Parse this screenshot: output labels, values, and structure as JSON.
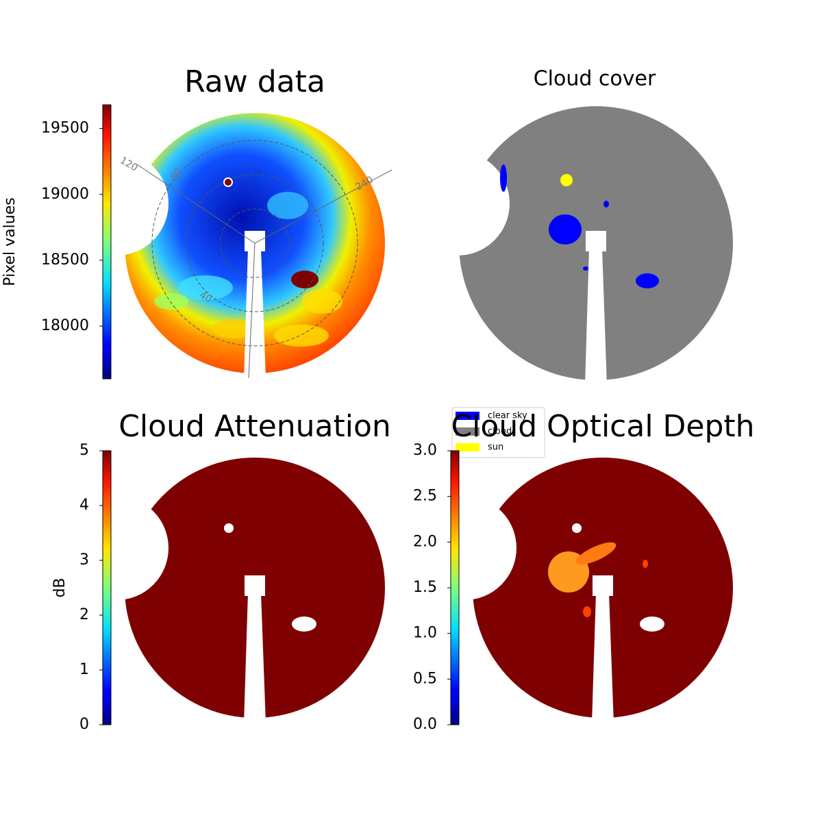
{
  "chart_data": [
    {
      "type": "image",
      "title": "Raw data",
      "colormap": "jet",
      "colorbar": {
        "label": "Pixel values",
        "ylim": [
          17600,
          19680
        ],
        "yticks": [
          18000,
          18500,
          19000,
          19500
        ]
      },
      "annotations": [
        "120",
        "80",
        "240",
        "40"
      ]
    },
    {
      "type": "image",
      "title": "Cloud cover",
      "series": [
        {
          "name": "clear sky",
          "color": "#0000ff"
        },
        {
          "name": "cloud",
          "color": "#808080"
        },
        {
          "name": "sun",
          "color": "#ffff00"
        }
      ]
    },
    {
      "type": "image",
      "title": "Cloud Attenuation",
      "colormap": "jet",
      "colorbar": {
        "label": "dB",
        "ylim": [
          0,
          5
        ],
        "yticks": [
          0,
          1,
          2,
          3,
          4,
          5
        ]
      }
    },
    {
      "type": "image",
      "title": "Cloud Optical Depth",
      "colormap": "jet",
      "colorbar": {
        "ylim": [
          0,
          3
        ],
        "yticks": [
          {
            "value": 0,
            "label": "0.0"
          },
          0.5,
          {
            "value": 1,
            "label": "1.0"
          },
          1.5,
          {
            "value": 2,
            "label": "2.0"
          },
          2.5,
          {
            "value": 3,
            "label": "3.0"
          }
        ]
      }
    }
  ]
}
